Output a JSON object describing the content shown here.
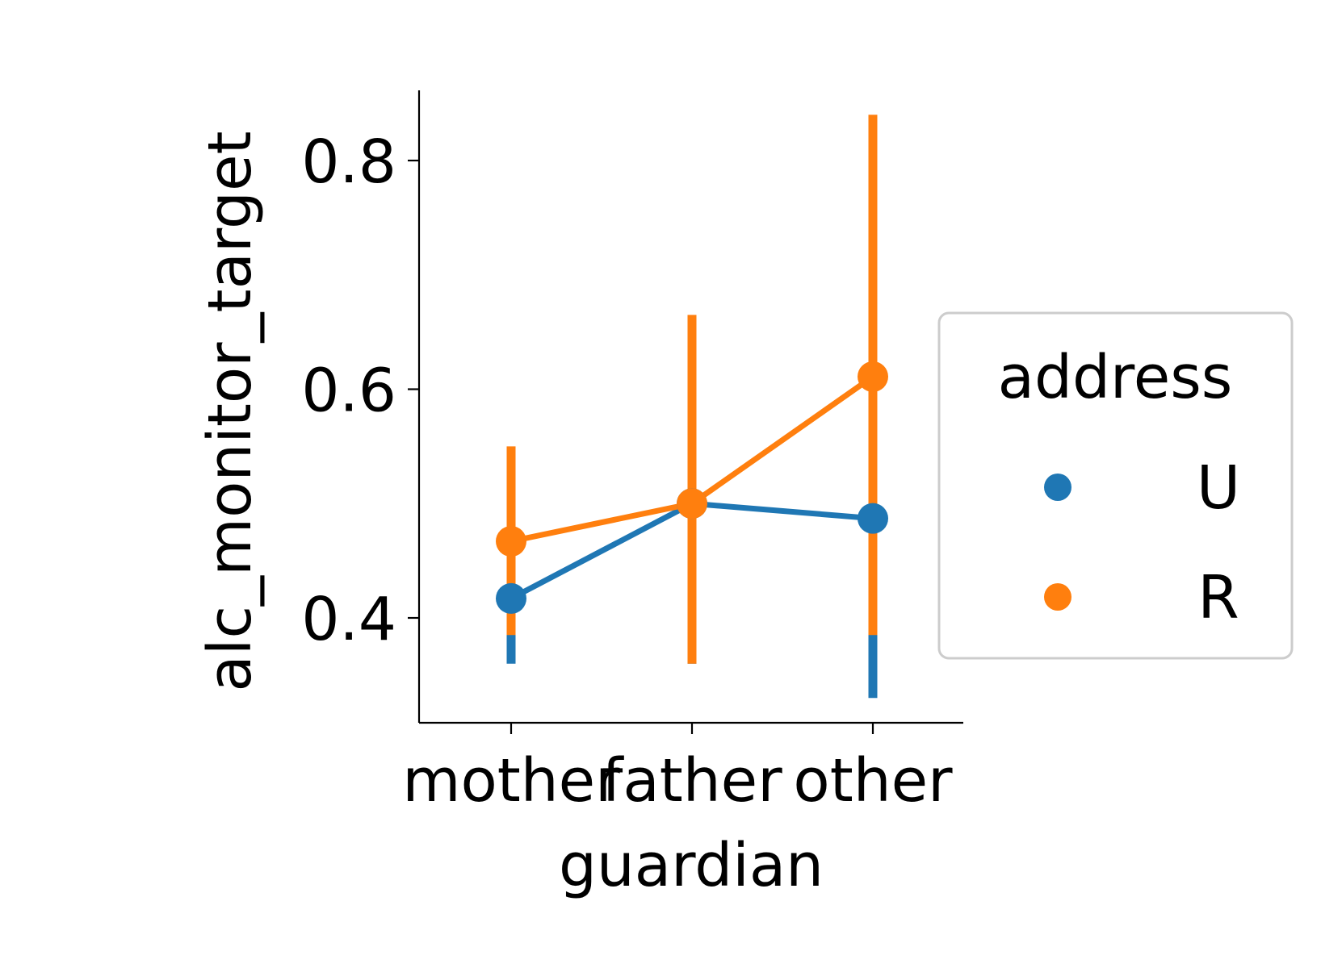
{
  "chart_data": {
    "type": "line",
    "xlabel": "guardian",
    "ylabel": "alc_monitor_target",
    "categories": [
      "mother",
      "father",
      "other"
    ],
    "ylim": [
      0.3,
      0.86
    ],
    "yticks": [
      0.4,
      0.6,
      0.8
    ],
    "ytick_labels": [
      "0.4",
      "0.6",
      "0.8"
    ],
    "grid": false,
    "legend": {
      "title": "address",
      "placement": "right",
      "entries": [
        "U",
        "R"
      ]
    },
    "series": [
      {
        "name": "U",
        "color": "#1f77b4",
        "values": [
          0.417,
          0.5,
          0.487
        ],
        "ci_low": [
          0.36,
          0.36,
          0.33
        ],
        "ci_high": [
          0.47,
          0.61,
          0.64
        ]
      },
      {
        "name": "R",
        "color": "#ff7f0e",
        "values": [
          0.467,
          0.5,
          0.611
        ],
        "ci_low": [
          0.385,
          0.36,
          0.385
        ],
        "ci_high": [
          0.55,
          0.665,
          0.84
        ]
      }
    ]
  }
}
